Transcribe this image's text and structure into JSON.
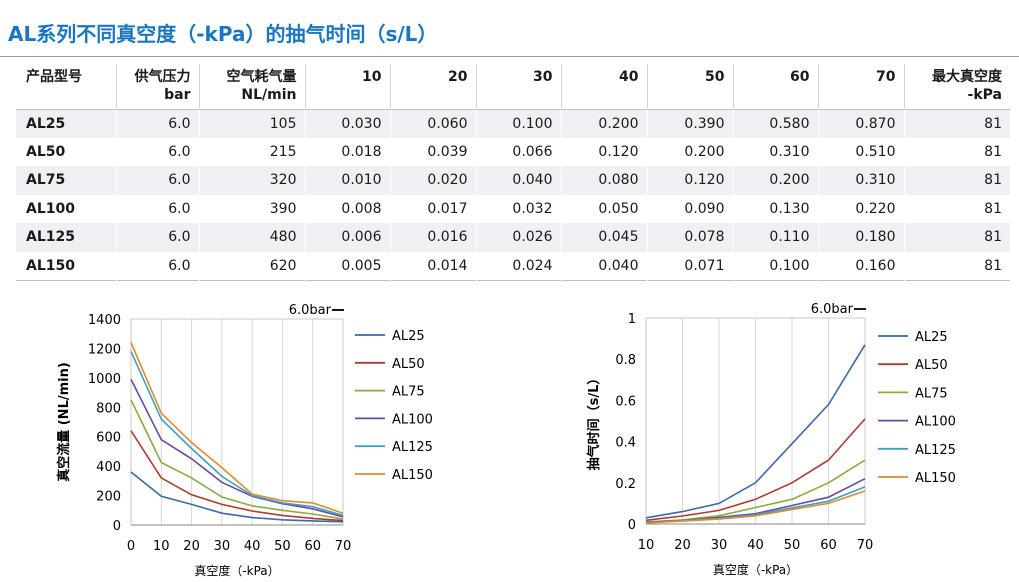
{
  "title": "AL系列不同真空度（-kPa）的抽气时间（s/L）",
  "table": {
    "headers": [
      {
        "l1": "产品型号",
        "l2": ""
      },
      {
        "l1": "供气压力",
        "l2": "bar"
      },
      {
        "l1": "空气耗气量",
        "l2": "NL/min"
      },
      {
        "l1": "10",
        "l2": ""
      },
      {
        "l1": "20",
        "l2": ""
      },
      {
        "l1": "30",
        "l2": ""
      },
      {
        "l1": "40",
        "l2": ""
      },
      {
        "l1": "50",
        "l2": ""
      },
      {
        "l1": "60",
        "l2": ""
      },
      {
        "l1": "70",
        "l2": ""
      },
      {
        "l1": "最大真空度",
        "l2": "-kPa"
      }
    ],
    "rows": [
      [
        "AL25",
        "6.0",
        "105",
        "0.030",
        "0.060",
        "0.100",
        "0.200",
        "0.390",
        "0.580",
        "0.870",
        "81"
      ],
      [
        "AL50",
        "6.0",
        "215",
        "0.018",
        "0.039",
        "0.066",
        "0.120",
        "0.200",
        "0.310",
        "0.510",
        "81"
      ],
      [
        "AL75",
        "6.0",
        "320",
        "0.010",
        "0.020",
        "0.040",
        "0.080",
        "0.120",
        "0.200",
        "0.310",
        "81"
      ],
      [
        "AL100",
        "6.0",
        "390",
        "0.008",
        "0.017",
        "0.032",
        "0.050",
        "0.090",
        "0.130",
        "0.220",
        "81"
      ],
      [
        "AL125",
        "6.0",
        "480",
        "0.006",
        "0.016",
        "0.026",
        "0.045",
        "0.078",
        "0.110",
        "0.180",
        "81"
      ],
      [
        "AL150",
        "6.0",
        "620",
        "0.005",
        "0.014",
        "0.024",
        "0.040",
        "0.071",
        "0.100",
        "0.160",
        "81"
      ]
    ]
  },
  "colors": {
    "title": "#1a76c2",
    "AL25": "#3a6aa8",
    "AL50": "#b03a2e",
    "AL75": "#8bab3e",
    "AL100": "#6a4a9c",
    "AL125": "#3aa3c4",
    "AL150": "#e08a2e"
  },
  "chart_data": [
    {
      "type": "line",
      "annotation": "6.0bar",
      "xlabel": "真空度（-kPa）",
      "ylabel": "真空流量 (NL/min)",
      "x": [
        0,
        10,
        20,
        30,
        40,
        50,
        60,
        70
      ],
      "xticks": [
        "0",
        "10",
        "20",
        "30",
        "40",
        "50",
        "60",
        "70"
      ],
      "yticks": [
        "0",
        "200",
        "400",
        "600",
        "800",
        "1000",
        "1200",
        "1400"
      ],
      "xlim": [
        0,
        70
      ],
      "ylim": [
        0,
        1400
      ],
      "grid": "vertical",
      "legend": "right",
      "series": [
        {
          "name": "AL25",
          "values": [
            360,
            195,
            140,
            80,
            50,
            35,
            28,
            22
          ]
        },
        {
          "name": "AL50",
          "values": [
            640,
            320,
            205,
            140,
            95,
            65,
            45,
            30
          ]
        },
        {
          "name": "AL75",
          "values": [
            850,
            425,
            320,
            190,
            130,
            100,
            75,
            40
          ]
        },
        {
          "name": "AL100",
          "values": [
            990,
            580,
            450,
            290,
            195,
            145,
            110,
            55
          ]
        },
        {
          "name": "AL125",
          "values": [
            1180,
            720,
            520,
            330,
            200,
            150,
            125,
            65
          ]
        },
        {
          "name": "AL150",
          "values": [
            1240,
            760,
            560,
            390,
            210,
            165,
            150,
            80
          ]
        }
      ]
    },
    {
      "type": "line",
      "annotation": "6.0bar",
      "xlabel": "真空度（-kPa）",
      "ylabel": "抽气时间（s/L）",
      "x": [
        10,
        20,
        30,
        40,
        50,
        60,
        70
      ],
      "xticks": [
        "10",
        "20",
        "30",
        "40",
        "50",
        "60",
        "70"
      ],
      "yticks": [
        "0",
        "0.2",
        "0.4",
        "0.6",
        "0.8",
        "1"
      ],
      "xlim": [
        10,
        70
      ],
      "ylim": [
        0,
        1
      ],
      "grid": "vertical",
      "legend": "right",
      "series": [
        {
          "name": "AL25",
          "values": [
            0.03,
            0.06,
            0.1,
            0.2,
            0.39,
            0.58,
            0.87
          ]
        },
        {
          "name": "AL50",
          "values": [
            0.018,
            0.039,
            0.066,
            0.12,
            0.2,
            0.31,
            0.51
          ]
        },
        {
          "name": "AL75",
          "values": [
            0.01,
            0.02,
            0.04,
            0.08,
            0.12,
            0.2,
            0.31
          ]
        },
        {
          "name": "AL100",
          "values": [
            0.008,
            0.017,
            0.032,
            0.05,
            0.09,
            0.13,
            0.22
          ]
        },
        {
          "name": "AL125",
          "values": [
            0.006,
            0.016,
            0.026,
            0.045,
            0.078,
            0.11,
            0.18
          ]
        },
        {
          "name": "AL150",
          "values": [
            0.005,
            0.014,
            0.024,
            0.04,
            0.071,
            0.1,
            0.16
          ]
        }
      ]
    }
  ]
}
